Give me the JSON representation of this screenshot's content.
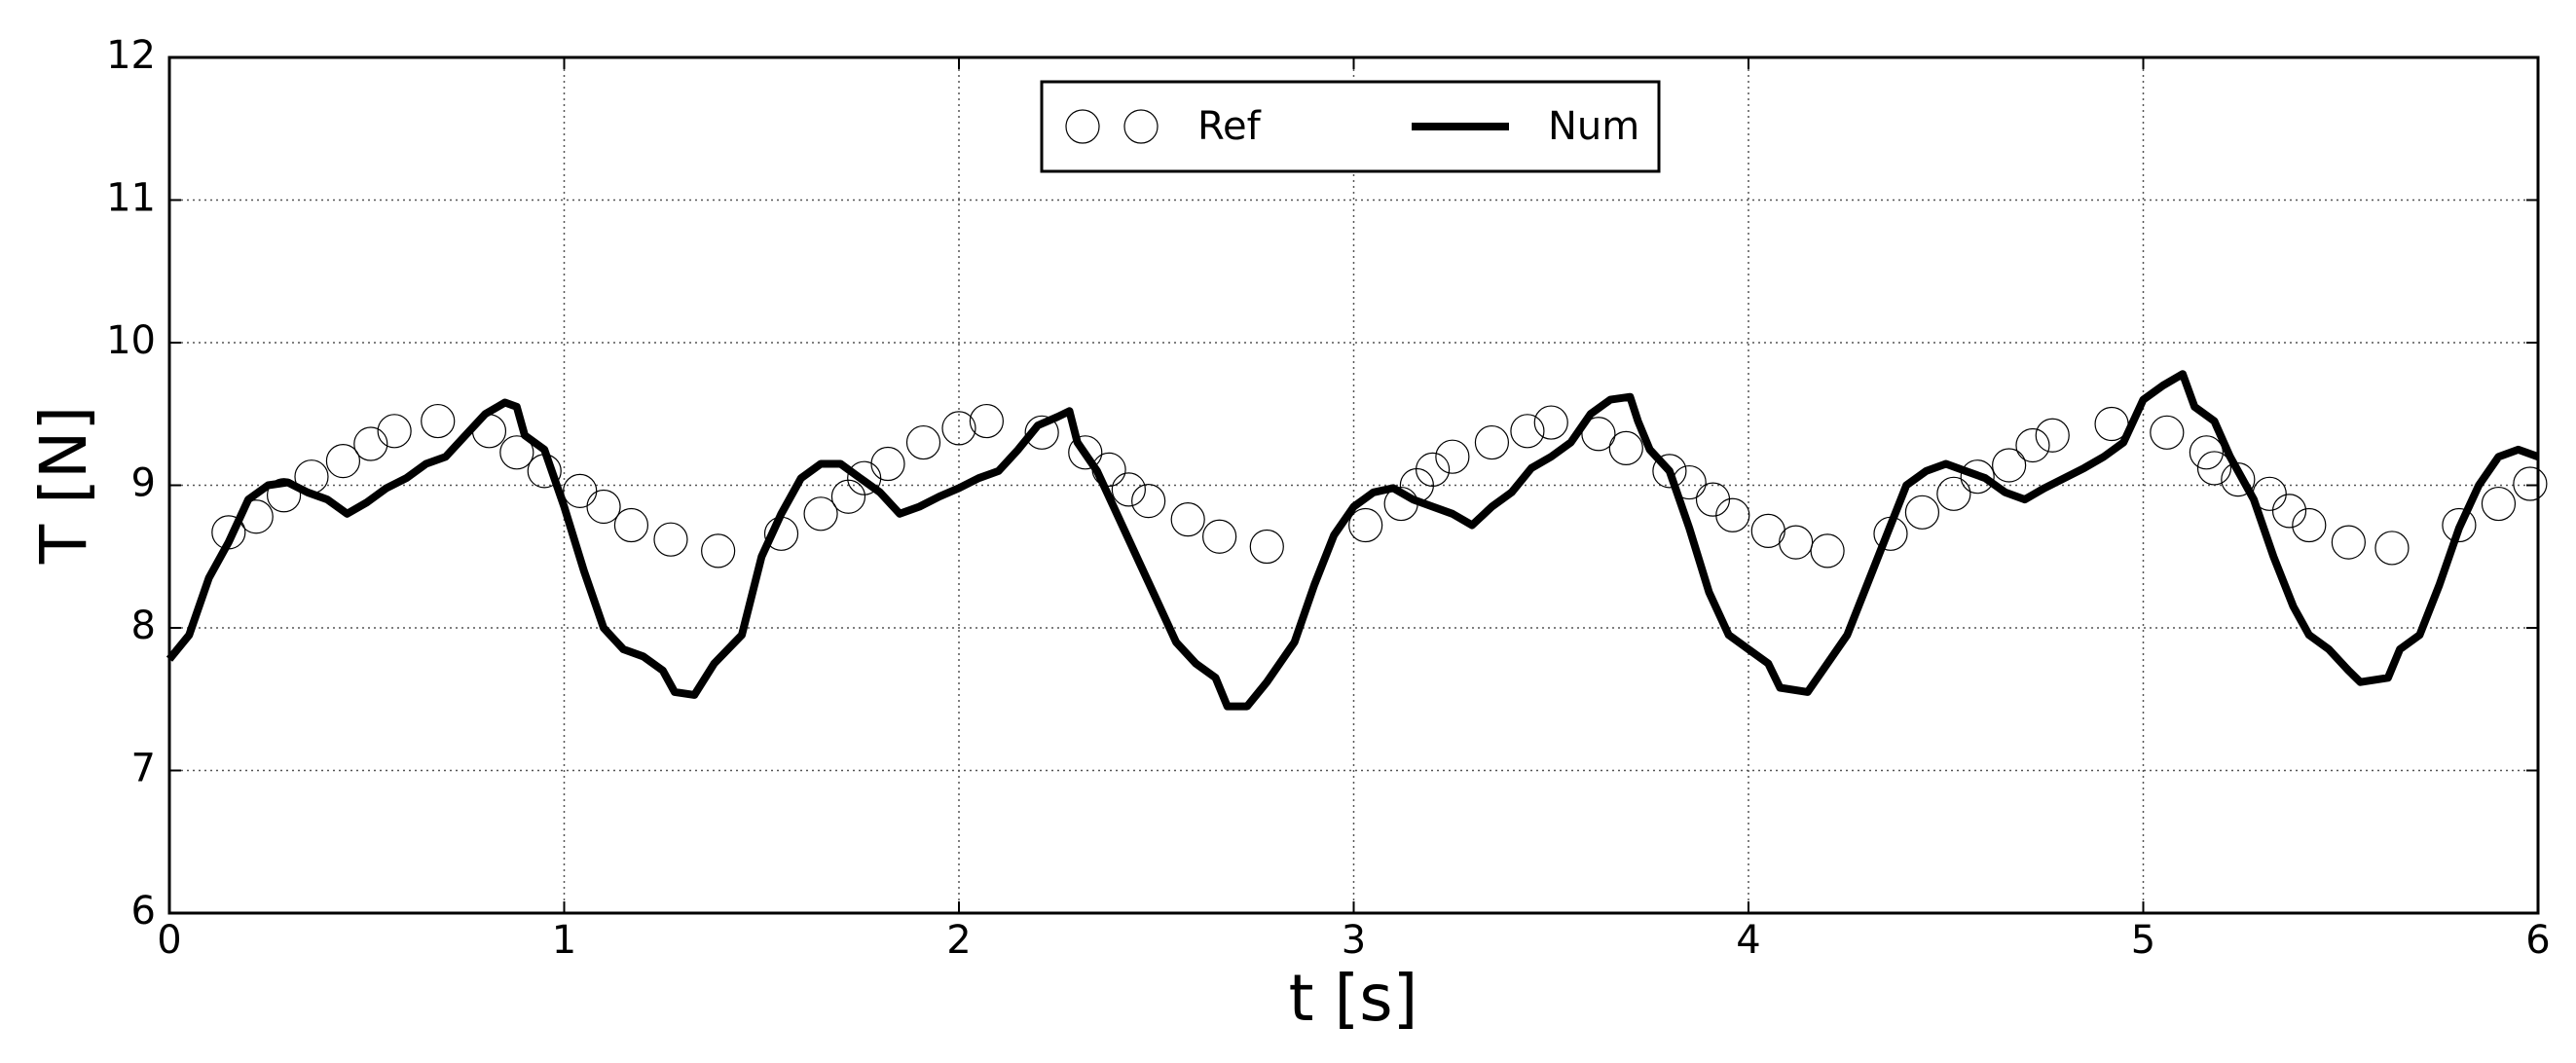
{
  "chart_data": {
    "type": "line",
    "xlabel": "t [s]",
    "ylabel": "T [N]",
    "xlim": [
      0,
      6
    ],
    "ylim": [
      6,
      12
    ],
    "xticks": [
      0,
      1,
      2,
      3,
      4,
      5,
      6
    ],
    "yticks": [
      6,
      7,
      8,
      9,
      10,
      11,
      12
    ],
    "grid": true,
    "legend": "upper center",
    "series": [
      {
        "name": "Ref",
        "color": "#000000",
        "style": "markers",
        "x": [
          0.15,
          0.22,
          0.29,
          0.36,
          0.44,
          0.51,
          0.57,
          0.68,
          0.81,
          0.88,
          0.95,
          1.04,
          1.1,
          1.17,
          1.27,
          1.39,
          1.55,
          1.65,
          1.72,
          1.76,
          1.82,
          1.91,
          2.0,
          2.07,
          2.21,
          2.32,
          2.38,
          2.43,
          2.48,
          2.58,
          2.66,
          2.78,
          3.03,
          3.12,
          3.16,
          3.2,
          3.25,
          3.35,
          3.44,
          3.5,
          3.62,
          3.69,
          3.8,
          3.85,
          3.91,
          3.96,
          4.05,
          4.12,
          4.2,
          4.36,
          4.44,
          4.52,
          4.58,
          4.66,
          4.72,
          4.77,
          4.92,
          5.06,
          5.16,
          5.18,
          5.24,
          5.32,
          5.37,
          5.42,
          5.52,
          5.63,
          5.8,
          5.9,
          5.98
        ],
        "values": [
          8.67,
          8.78,
          8.93,
          9.06,
          9.17,
          9.29,
          9.38,
          9.45,
          9.38,
          9.23,
          9.1,
          8.96,
          8.85,
          8.72,
          8.62,
          8.54,
          8.66,
          8.8,
          8.92,
          9.05,
          9.15,
          9.3,
          9.4,
          9.45,
          9.37,
          9.23,
          9.11,
          8.97,
          8.89,
          8.76,
          8.64,
          8.57,
          8.72,
          8.87,
          9.0,
          9.11,
          9.2,
          9.3,
          9.38,
          9.44,
          9.36,
          9.26,
          9.1,
          9.02,
          8.9,
          8.79,
          8.68,
          8.6,
          8.54,
          8.66,
          8.81,
          8.94,
          9.06,
          9.14,
          9.28,
          9.35,
          9.43,
          9.37,
          9.23,
          9.12,
          9.04,
          8.94,
          8.82,
          8.72,
          8.6,
          8.56,
          8.72,
          8.87,
          9.01
        ]
      },
      {
        "name": "Num",
        "color": "#000000",
        "style": "line",
        "x": [
          0,
          0.05,
          0.1,
          0.15,
          0.2,
          0.25,
          0.3,
          0.35,
          0.4,
          0.45,
          0.5,
          0.55,
          0.6,
          0.65,
          0.7,
          0.75,
          0.8,
          0.85,
          0.88,
          0.9,
          0.95,
          1.0,
          1.05,
          1.1,
          1.15,
          1.2,
          1.25,
          1.28,
          1.33,
          1.38,
          1.45,
          1.5,
          1.55,
          1.6,
          1.65,
          1.7,
          1.75,
          1.8,
          1.85,
          1.9,
          1.95,
          2.0,
          2.05,
          2.1,
          2.15,
          2.2,
          2.25,
          2.28,
          2.3,
          2.35,
          2.4,
          2.45,
          2.5,
          2.55,
          2.6,
          2.65,
          2.68,
          2.73,
          2.78,
          2.85,
          2.9,
          2.95,
          3.0,
          3.05,
          3.1,
          3.15,
          3.2,
          3.25,
          3.3,
          3.35,
          3.4,
          3.45,
          3.5,
          3.55,
          3.6,
          3.65,
          3.7,
          3.72,
          3.75,
          3.8,
          3.85,
          3.9,
          3.95,
          4.0,
          4.05,
          4.08,
          4.15,
          4.2,
          4.25,
          4.3,
          4.35,
          4.4,
          4.45,
          4.5,
          4.55,
          4.6,
          4.65,
          4.7,
          4.75,
          4.8,
          4.85,
          4.9,
          4.95,
          5.0,
          5.05,
          5.1,
          5.13,
          5.18,
          5.22,
          5.28,
          5.33,
          5.38,
          5.42,
          5.47,
          5.52,
          5.55,
          5.62,
          5.65,
          5.7,
          5.75,
          5.8,
          5.85,
          5.9,
          5.95,
          6.0
        ],
        "values": [
          7.78,
          7.95,
          8.35,
          8.6,
          8.9,
          9.0,
          9.02,
          8.95,
          8.9,
          8.8,
          8.88,
          8.98,
          9.05,
          9.15,
          9.2,
          9.35,
          9.5,
          9.58,
          9.55,
          9.35,
          9.25,
          8.85,
          8.4,
          8.0,
          7.85,
          7.8,
          7.7,
          7.55,
          7.53,
          7.75,
          7.95,
          8.5,
          8.8,
          9.05,
          9.15,
          9.15,
          9.05,
          8.95,
          8.8,
          8.85,
          8.92,
          8.98,
          9.05,
          9.1,
          9.25,
          9.42,
          9.48,
          9.52,
          9.3,
          9.1,
          8.8,
          8.5,
          8.2,
          7.9,
          7.75,
          7.65,
          7.45,
          7.45,
          7.62,
          7.9,
          8.3,
          8.65,
          8.85,
          8.95,
          8.98,
          8.9,
          8.85,
          8.8,
          8.72,
          8.85,
          8.95,
          9.12,
          9.2,
          9.3,
          9.5,
          9.6,
          9.62,
          9.45,
          9.25,
          9.1,
          8.7,
          8.25,
          7.95,
          7.85,
          7.75,
          7.58,
          7.55,
          7.75,
          7.95,
          8.3,
          8.65,
          9.0,
          9.1,
          9.15,
          9.1,
          9.05,
          8.95,
          8.9,
          8.98,
          9.05,
          9.12,
          9.2,
          9.3,
          9.6,
          9.7,
          9.78,
          9.55,
          9.45,
          9.2,
          8.9,
          8.5,
          8.15,
          7.95,
          7.85,
          7.7,
          7.62,
          7.65,
          7.85,
          7.95,
          8.3,
          8.7,
          9.0,
          9.2,
          9.25,
          9.2
        ]
      }
    ]
  }
}
